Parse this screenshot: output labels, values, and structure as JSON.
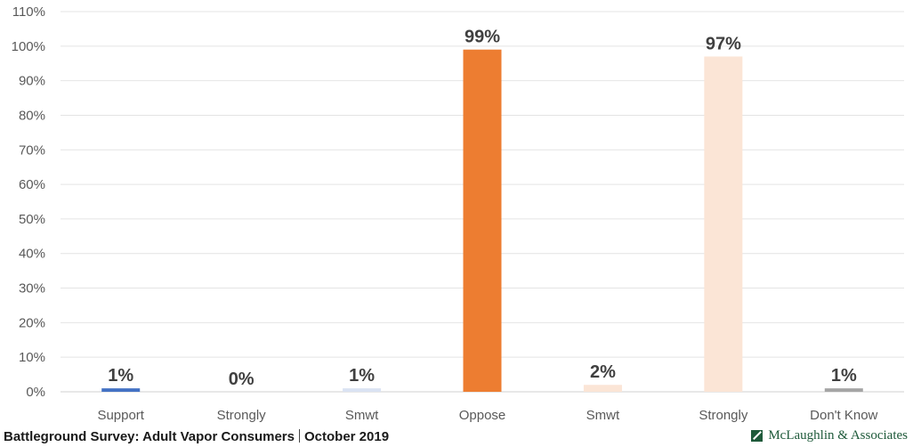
{
  "chart_data": {
    "type": "bar",
    "categories": [
      "Support",
      "Strongly",
      "Smwt",
      "Oppose",
      "Smwt",
      "Strongly",
      "Don't Know"
    ],
    "values": [
      1,
      0,
      1,
      99,
      2,
      97,
      1
    ],
    "data_labels": [
      "1%",
      "0%",
      "1%",
      "99%",
      "2%",
      "97%",
      "1%"
    ],
    "bar_colors": [
      "#4472c4",
      "#4472c4",
      "#dae3f3",
      "#ed7d31",
      "#fbe5d6",
      "#fbe5d6",
      "#a5a5a5"
    ],
    "ylim": [
      0,
      110
    ],
    "yticks": [
      0,
      10,
      20,
      30,
      40,
      50,
      60,
      70,
      80,
      90,
      100,
      110
    ],
    "ytick_labels": [
      "0%",
      "10%",
      "20%",
      "30%",
      "40%",
      "50%",
      "60%",
      "70%",
      "80%",
      "90%",
      "100%",
      "110%"
    ],
    "grid": true,
    "legend": "none"
  },
  "footer": {
    "survey": "Battleground Survey: Adult Vapor Consumers",
    "date": "October 2019",
    "brand": "McLaughlin & Associates"
  }
}
